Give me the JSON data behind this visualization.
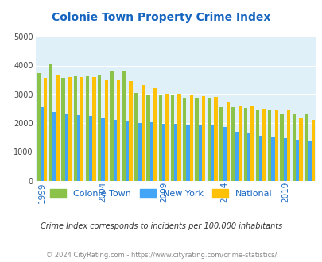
{
  "title": "Colonie Town Property Crime Index",
  "title_color": "#1565C0",
  "subtitle": "Crime Index corresponds to incidents per 100,000 inhabitants",
  "footer": "© 2024 CityRating.com - https://www.cityrating.com/crime-statistics/",
  "years": [
    1999,
    2000,
    2001,
    2002,
    2003,
    2004,
    2005,
    2006,
    2007,
    2008,
    2009,
    2010,
    2011,
    2012,
    2013,
    2014,
    2015,
    2016,
    2017,
    2018,
    2019,
    2020,
    2021
  ],
  "colonie_town": [
    3750,
    4080,
    3580,
    3620,
    3620,
    3680,
    3780,
    3800,
    3050,
    2980,
    2980,
    2960,
    2880,
    2870,
    2850,
    2560,
    2560,
    2530,
    2460,
    2430,
    2330,
    2340,
    2340
  ],
  "new_york": [
    2540,
    2400,
    2320,
    2280,
    2260,
    2200,
    2110,
    2060,
    2010,
    2030,
    1980,
    1970,
    1960,
    1950,
    1940,
    1870,
    1700,
    1640,
    1560,
    1510,
    1490,
    1430,
    1400
  ],
  "national": [
    3580,
    3660,
    3590,
    3590,
    3590,
    3490,
    3480,
    3470,
    3330,
    3220,
    3030,
    3000,
    2960,
    2940,
    2920,
    2730,
    2620,
    2600,
    2490,
    2470,
    2470,
    2190,
    2110
  ],
  "colonie_color": "#8BC34A",
  "newyork_color": "#42A5F5",
  "national_color": "#FFC107",
  "bg_color": "#DFF0F8",
  "ylim": [
    0,
    5000
  ],
  "yticks": [
    0,
    1000,
    2000,
    3000,
    4000,
    5000
  ],
  "xtick_years": [
    1999,
    2004,
    2009,
    2014,
    2019
  ]
}
